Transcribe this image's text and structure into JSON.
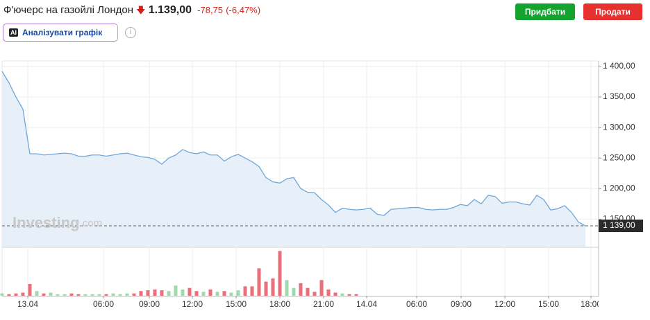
{
  "header": {
    "title": "Ф'ючерс на газойлі Лондон",
    "price": "1.139,00",
    "change": "-78,75",
    "change_percent": "(-6,47%)"
  },
  "buttons": {
    "buy": "Придбати",
    "sell": "Продати"
  },
  "analyze": {
    "icon": "AI",
    "label": "Аналізувати графік"
  },
  "watermark": {
    "brand": "Investing",
    "suffix": ".com"
  },
  "chart_data": {
    "type": "line",
    "color": "#6fa7da",
    "area_color": "#e7eff8",
    "grid": true,
    "values": [
      1392,
      1373,
      1350,
      1330,
      1257,
      1257,
      1255,
      1256,
      1257,
      1258,
      1257,
      1253,
      1253,
      1255,
      1255,
      1253,
      1255,
      1257,
      1258,
      1255,
      1252,
      1251,
      1248,
      1240,
      1250,
      1255,
      1264,
      1259,
      1257,
      1260,
      1255,
      1255,
      1245,
      1252,
      1256,
      1250,
      1244,
      1236,
      1218,
      1211,
      1209,
      1216,
      1218,
      1200,
      1194,
      1193,
      1182,
      1173,
      1161,
      1168,
      1166,
      1165,
      1166,
      1168,
      1158,
      1156,
      1166,
      1167,
      1168,
      1169,
      1169,
      1166,
      1165,
      1166,
      1166,
      1169,
      1174,
      1172,
      1182,
      1175,
      1189,
      1187,
      1176,
      1178,
      1178,
      1175,
      1173,
      1189,
      1182,
      1165,
      1167,
      1172,
      1161,
      1145,
      1139
    ],
    "xlim": [
      0,
      85
    ],
    "xticks": [
      {
        "value": 3.7,
        "label": "13.04"
      },
      {
        "value": 14.6,
        "label": "06:00"
      },
      {
        "value": 21.2,
        "label": "09:00"
      },
      {
        "value": 27.4,
        "label": "12:00"
      },
      {
        "value": 33.7,
        "label": "15:00"
      },
      {
        "value": 40,
        "label": "18:00"
      },
      {
        "value": 46.3,
        "label": "21:00"
      },
      {
        "value": 52.5,
        "label": "14.04"
      },
      {
        "value": 59.7,
        "label": "06:00"
      },
      {
        "value": 66.1,
        "label": "09:00"
      },
      {
        "value": 72.4,
        "label": "12:00"
      },
      {
        "value": 78.7,
        "label": "15:00"
      },
      {
        "value": 84.8,
        "label": "18:00"
      }
    ],
    "ylim": [
      1105,
      1409
    ],
    "yticks": [
      {
        "value": 1150,
        "label": "1 150,00"
      },
      {
        "value": 1200,
        "label": "1 200,00"
      },
      {
        "value": 1250,
        "label": "1 250,00"
      },
      {
        "value": 1300,
        "label": "1 300,00"
      },
      {
        "value": 1350,
        "label": "1 350,00"
      },
      {
        "value": 1400,
        "label": "1 400,00"
      }
    ],
    "last_price": {
      "value": 1139,
      "label": "1 139,00"
    },
    "volume": {
      "up_color": "#a3d9b1",
      "down_color": "#e8707a",
      "vlim": [
        0,
        60
      ],
      "values": [
        3,
        2,
        3,
        4,
        15,
        6,
        3,
        4,
        2,
        2,
        3,
        2,
        2,
        2,
        2,
        2,
        3,
        2,
        3,
        3,
        6,
        7,
        8,
        7,
        6,
        13,
        8,
        10,
        6,
        5,
        8,
        5,
        6,
        4,
        7,
        12,
        12,
        35,
        18,
        22,
        57,
        20,
        10,
        16,
        10,
        5,
        20,
        8,
        4,
        3,
        2,
        2,
        0,
        0,
        0,
        0,
        0,
        0,
        0,
        0,
        0,
        0,
        0,
        0,
        0,
        0,
        0,
        0,
        0,
        0,
        0,
        0,
        0,
        0,
        0,
        0,
        0,
        0,
        0,
        0,
        0,
        0,
        0,
        0,
        0
      ]
    }
  }
}
